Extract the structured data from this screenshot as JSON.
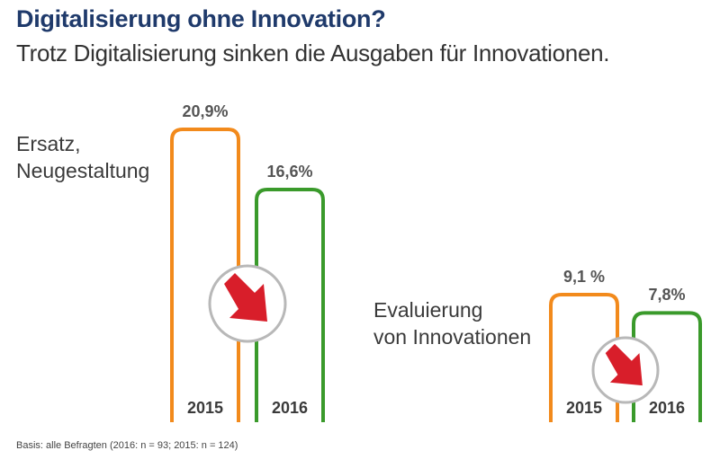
{
  "title": "Digitalisierung ohne Innovation?",
  "subtitle": "Trotz Digitalisierung sinken die Ausgaben für Innovationen.",
  "footnote": "Basis: alle Befragten (2016: n = 93; 2015: n = 124)",
  "colors": {
    "2015": "#f28a1c",
    "2016": "#3a9a2b",
    "arrow": "#d81e2a",
    "circle_border": "#b8b8b8"
  },
  "chart_data": {
    "type": "bar",
    "categories": [
      "Ersatz, Neugestaltung",
      "Evaluierung von Innovationen"
    ],
    "category_lines": [
      [
        "Ersatz,",
        "Neugestaltung"
      ],
      [
        "Evaluierung",
        "von Innovationen"
      ]
    ],
    "series": [
      {
        "name": "2015",
        "values": [
          20.9,
          9.1
        ],
        "labels": [
          "20,9%",
          "9,1 %"
        ]
      },
      {
        "name": "2016",
        "values": [
          16.6,
          7.8
        ],
        "labels": [
          "16,6%",
          "7,8%"
        ]
      }
    ],
    "unit": "%",
    "annotation": "down-arrow-icon"
  }
}
